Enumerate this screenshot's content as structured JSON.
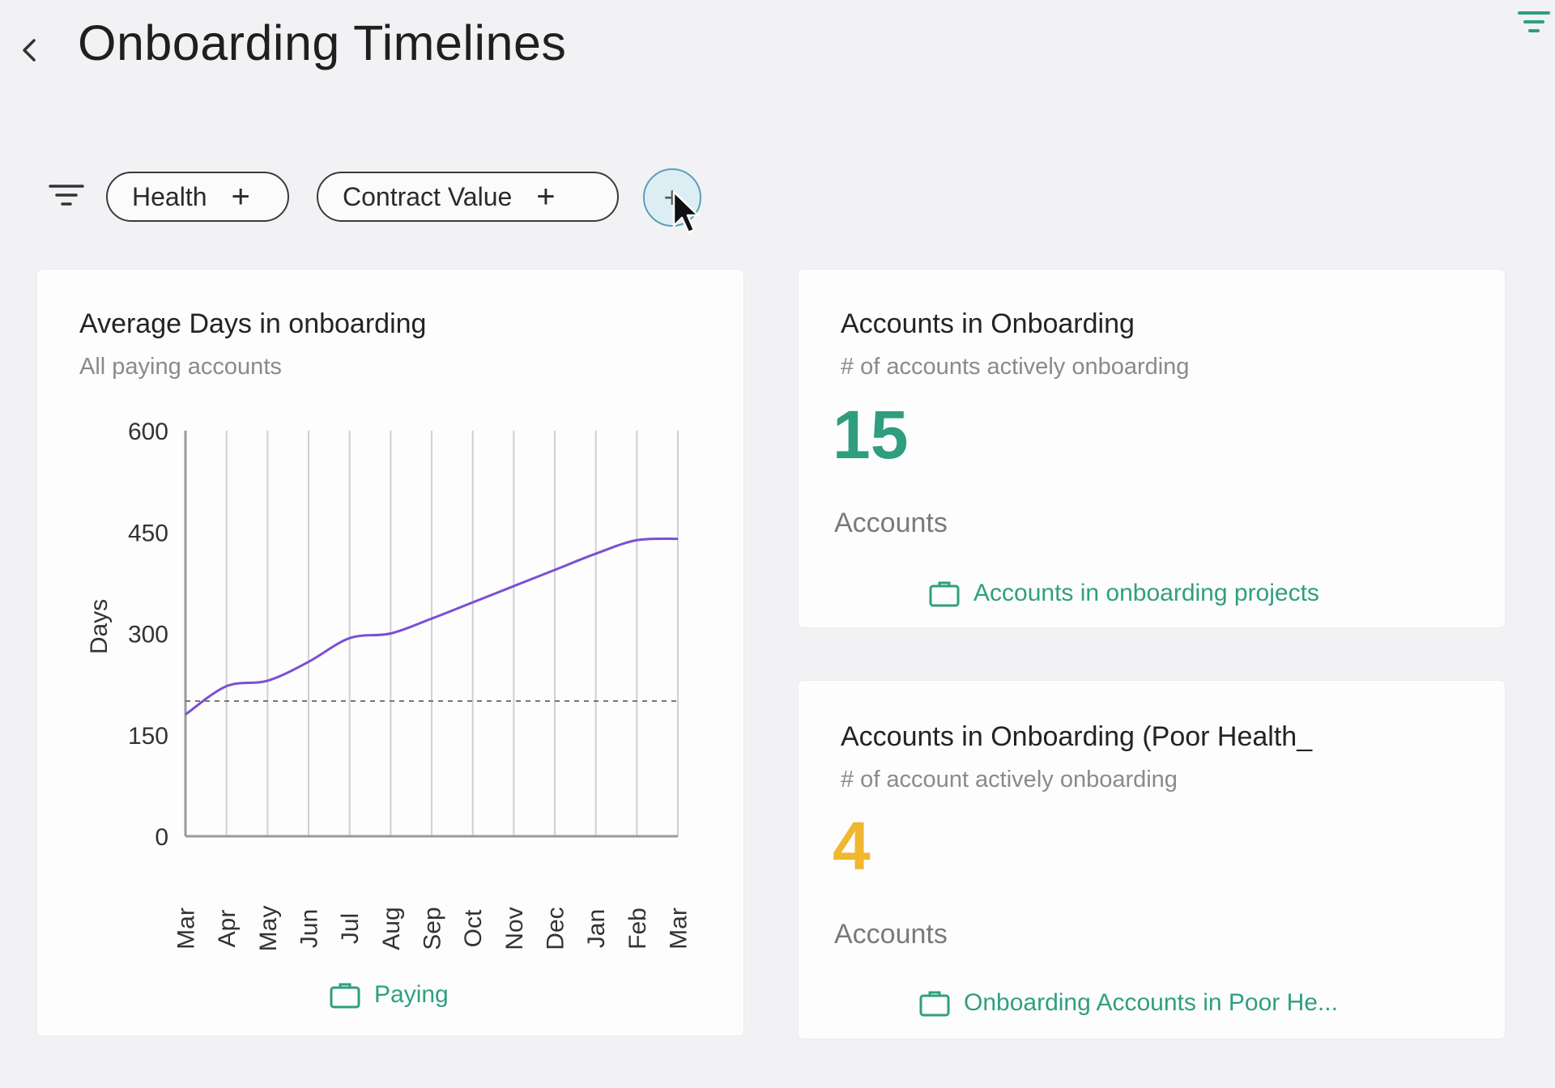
{
  "header": {
    "title": "Onboarding Timelines",
    "back_icon": "chevron-left-icon",
    "filter_icon": "filter-lines-icon"
  },
  "filters": {
    "chips": [
      {
        "label": "Health",
        "icon": "plus-icon"
      },
      {
        "label": "Contract Value",
        "icon": "plus-icon"
      }
    ],
    "add_button_label": "+"
  },
  "colors": {
    "accent_green": "#2f9f7f",
    "big_number_green": "#2e9e7f",
    "big_number_yellow": "#f0b72f",
    "line_purple": "#7b4fd4",
    "add_button_border": "#5aa0b8"
  },
  "cards": {
    "avg_days": {
      "title": "Average Days in onboarding",
      "subtitle": "All paying accounts",
      "footer_label": "Paying",
      "footer_icon": "briefcase-icon"
    },
    "accounts_onboarding": {
      "title": "Accounts in Onboarding",
      "subtitle": "# of accounts actively onboarding",
      "value": "15",
      "unit": "Accounts",
      "footer_label": "Accounts in onboarding projects",
      "footer_icon": "briefcase-icon"
    },
    "accounts_poor_health": {
      "title": "Accounts in Onboarding (Poor Health_",
      "subtitle": "# of account actively onboarding",
      "value": "4",
      "unit": "Accounts",
      "footer_label": "Onboarding Accounts in Poor He...",
      "footer_icon": "briefcase-icon"
    }
  },
  "chart_data": {
    "type": "line",
    "title": "Average Days in onboarding",
    "xlabel": "",
    "ylabel": "Days",
    "categories": [
      "Mar",
      "Apr",
      "May",
      "Jun",
      "Jul",
      "Aug",
      "Sep",
      "Oct",
      "Nov",
      "Dec",
      "Jan",
      "Feb",
      "Mar"
    ],
    "series": [
      {
        "name": "Average Days",
        "values": [
          180,
          222,
          230,
          258,
          293,
          300,
          322,
          346,
          370,
          394,
          418,
          438,
          440
        ]
      }
    ],
    "reference_line": {
      "value": 200,
      "style": "dashed"
    },
    "yticks": [
      0,
      150,
      300,
      450,
      600
    ],
    "ylim": [
      0,
      600
    ],
    "grid": "vertical"
  }
}
